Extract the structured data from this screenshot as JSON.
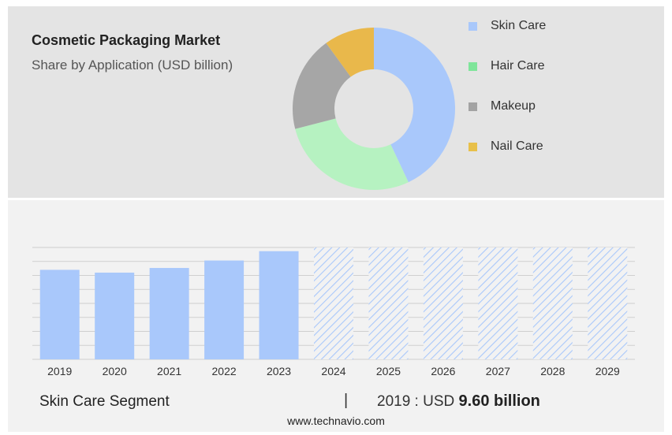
{
  "header": {
    "title": "Cosmetic Packaging Market",
    "subtitle": "Share by Application (USD billion)"
  },
  "legend": [
    {
      "label": "Skin Care",
      "color": "#a9c8fb"
    },
    {
      "label": "Hair Care",
      "color": "#7fe59a"
    },
    {
      "label": "Makeup",
      "color": "#a3a3a3"
    },
    {
      "label": "Nail Care",
      "color": "#e8c04a"
    }
  ],
  "chart_data": [
    {
      "type": "pie",
      "style": "donut",
      "categories": [
        "Skin Care",
        "Hair Care",
        "Makeup",
        "Nail Care"
      ],
      "values": [
        43,
        28,
        19,
        10
      ],
      "colors": [
        "#a9c8fb",
        "#b6f2c1",
        "#a6a6a6",
        "#e9b84b"
      ]
    },
    {
      "type": "bar",
      "categories": [
        "2019",
        "2020",
        "2021",
        "2022",
        "2023",
        "2024",
        "2025",
        "2026",
        "2027",
        "2028",
        "2029"
      ],
      "values": [
        9.6,
        9.3,
        9.8,
        10.6,
        11.6,
        null,
        null,
        null,
        null,
        null,
        null
      ],
      "forecast_from": "2024",
      "ylim": [
        0,
        12
      ],
      "grid": true,
      "bar_color": "#a9c8fb"
    }
  ],
  "footer": {
    "segment_label": "Skin Care Segment",
    "separator": "|",
    "value_prefix": "2019 : USD",
    "value_bold": "9.60 billion",
    "website": "www.technavio.com"
  }
}
